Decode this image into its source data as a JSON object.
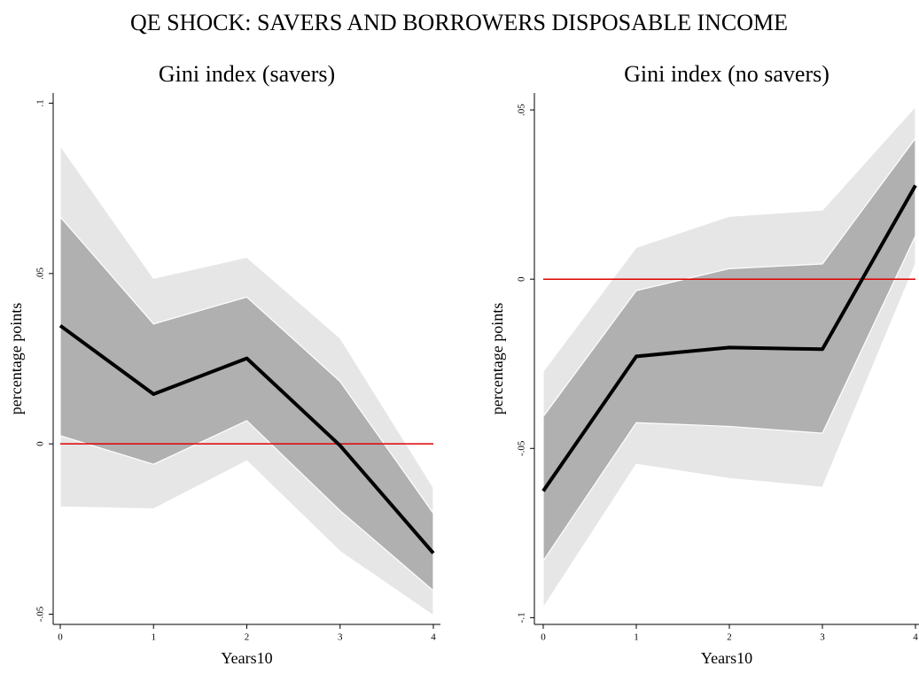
{
  "title": "QE SHOCK: SAVERS AND BORROWERS DISPOSABLE INCOME",
  "chart_data": [
    {
      "type": "line",
      "title": "Gini index (savers)",
      "x_label": "Years10",
      "y_label": "percentage points",
      "x": [
        0,
        1,
        2,
        3,
        4
      ],
      "values": [
        0.0347,
        0.0146,
        0.0251,
        -0.0005,
        -0.0321
      ],
      "color": "#000000",
      "bands": [
        {
          "upper": [
            0.0875,
            0.0486,
            0.0548,
            0.0311,
            -0.0128
          ],
          "lower": [
            -0.0185,
            -0.0191,
            -0.005,
            -0.0316,
            -0.0504
          ],
          "color": "#e6e6e6"
        },
        {
          "upper": [
            0.0666,
            0.0352,
            0.0431,
            0.0183,
            -0.0204
          ],
          "lower": [
            0.0024,
            -0.006,
            0.0068,
            -0.0196,
            -0.0431
          ],
          "color": "#b0b0b0"
        }
      ],
      "hline": 0,
      "hline_color": "#e00000",
      "xlim": [
        -0.076,
        4.076
      ],
      "ylim": [
        -0.053,
        0.103
      ],
      "xticks": [
        0,
        1,
        2,
        3,
        4
      ],
      "yticks": [
        {
          "value": -0.05,
          "label": "-.05"
        },
        0,
        {
          "value": 0.05,
          "label": ".05"
        },
        {
          "value": 0.1,
          "label": ".1"
        }
      ]
    },
    {
      "type": "line",
      "title": "Gini index (no savers)",
      "x_label": "Years10",
      "y_label": "percentage points",
      "x": [
        0,
        1,
        2,
        3,
        4
      ],
      "values": [
        -0.0626,
        -0.0228,
        -0.0202,
        -0.0207,
        0.0277
      ],
      "color": "#000000",
      "bands": [
        {
          "upper": [
            -0.0272,
            0.0094,
            0.0186,
            0.0204,
            0.051
          ],
          "lower": [
            -0.0971,
            -0.0547,
            -0.0589,
            -0.0615,
            0.0045
          ],
          "color": "#e6e6e6"
        },
        {
          "upper": [
            -0.0406,
            -0.0034,
            0.0031,
            0.0045,
            0.0416
          ],
          "lower": [
            -0.0832,
            -0.0424,
            -0.0435,
            -0.0455,
            0.0128
          ],
          "color": "#b0b0b0"
        }
      ],
      "hline": 0,
      "hline_color": "#e00000",
      "xlim": [
        -0.095,
        4.038
      ],
      "ylim": [
        -0.102,
        0.055
      ],
      "xticks": [
        0,
        1,
        2,
        3,
        4
      ],
      "yticks": [
        {
          "value": -0.1,
          "label": "-.1"
        },
        {
          "value": -0.05,
          "label": "-.05"
        },
        0,
        {
          "value": 0.05,
          "label": ".05"
        }
      ]
    }
  ]
}
